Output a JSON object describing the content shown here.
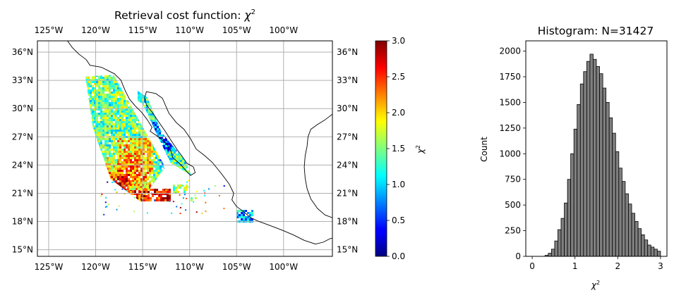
{
  "chart_data": [
    {
      "type": "map",
      "title_text": "Retrieval cost function: ",
      "title_symbol": "χ",
      "title_exp": "2",
      "lon_ticks": [
        -125,
        -120,
        -115,
        -110,
        -105,
        -100
      ],
      "lon_tick_labels": [
        "125°W",
        "120°W",
        "115°W",
        "110°W",
        "105°W",
        "100°W"
      ],
      "lat_ticks": [
        15,
        18,
        21,
        24,
        27,
        30,
        33,
        36
      ],
      "lat_tick_labels": [
        "15°N",
        "18°N",
        "21°N",
        "24°N",
        "27°N",
        "30°N",
        "33°N",
        "36°N"
      ],
      "lon_range": [
        -126.2,
        -94.8
      ],
      "lat_range": [
        14.3,
        37.2
      ],
      "grid": true,
      "colorbar": {
        "label_symbol": "χ",
        "label_exp": "2",
        "colormap": "jet",
        "range": [
          0,
          3.0
        ],
        "ticks": [
          0,
          0.5,
          1.0,
          1.5,
          2.0,
          2.5,
          3.0
        ],
        "tick_labels": [
          "0.0",
          "0.5",
          "1.0",
          "1.5",
          "2.0",
          "2.5",
          "3.0"
        ]
      },
      "data_band_corners": [
        [
          -121.1,
          33.4
        ],
        [
          -118.1,
          33.6
        ],
        [
          -112.6,
          23.8
        ],
        [
          -115.2,
          20.1
        ],
        [
          -118.4,
          22.5
        ],
        [
          -120.3,
          28.0
        ]
      ],
      "baja_gulf_strip": [
        [
          -117.2,
          31.8
        ],
        [
          -116.9,
          32.8
        ],
        [
          -114.5,
          31.2
        ],
        [
          -113.0,
          27.5
        ],
        [
          -110.5,
          24.5
        ],
        [
          -109.8,
          22.9
        ],
        [
          -112.0,
          24.2
        ],
        [
          -113.6,
          27.5
        ],
        [
          -115.0,
          30.5
        ]
      ],
      "coast_polylines": [
        [
          [
            -123.0,
            37.2
          ],
          [
            -122.5,
            36.5
          ],
          [
            -121.8,
            35.8
          ],
          [
            -121.0,
            35.2
          ],
          [
            -120.6,
            34.6
          ],
          [
            -119.4,
            34.4
          ],
          [
            -118.6,
            34.0
          ],
          [
            -118.0,
            33.7
          ],
          [
            -117.3,
            33.0
          ],
          [
            -117.1,
            32.5
          ],
          [
            -116.8,
            31.8
          ],
          [
            -116.4,
            31.0
          ],
          [
            -115.8,
            30.3
          ],
          [
            -115.1,
            29.6
          ],
          [
            -114.5,
            28.8
          ],
          [
            -114.0,
            28.0
          ],
          [
            -114.2,
            27.6
          ],
          [
            -113.2,
            26.9
          ],
          [
            -112.4,
            26.2
          ],
          [
            -112.0,
            25.5
          ],
          [
            -111.8,
            24.8
          ],
          [
            -110.9,
            24.0
          ],
          [
            -110.3,
            23.3
          ],
          [
            -109.9,
            22.9
          ],
          [
            -109.4,
            23.2
          ],
          [
            -109.6,
            23.8
          ],
          [
            -110.3,
            24.2
          ],
          [
            -110.7,
            24.8
          ],
          [
            -111.3,
            25.6
          ],
          [
            -111.9,
            26.5
          ],
          [
            -112.6,
            27.6
          ],
          [
            -113.3,
            28.6
          ],
          [
            -113.9,
            29.5
          ],
          [
            -114.6,
            30.4
          ],
          [
            -114.8,
            31.1
          ],
          [
            -114.6,
            31.8
          ],
          [
            -113.6,
            31.6
          ],
          [
            -112.9,
            31.1
          ],
          [
            -112.2,
            29.5
          ],
          [
            -111.4,
            28.5
          ],
          [
            -110.6,
            27.8
          ],
          [
            -109.9,
            26.8
          ],
          [
            -109.3,
            25.7
          ],
          [
            -108.4,
            25.0
          ],
          [
            -107.6,
            24.3
          ],
          [
            -106.7,
            23.2
          ],
          [
            -105.8,
            22.0
          ],
          [
            -105.3,
            21.0
          ],
          [
            -105.5,
            20.3
          ],
          [
            -105.0,
            19.6
          ],
          [
            -104.2,
            19.0
          ],
          [
            -103.5,
            18.4
          ],
          [
            -102.6,
            18.0
          ],
          [
            -101.5,
            17.6
          ],
          [
            -100.2,
            17.1
          ],
          [
            -99.0,
            16.6
          ],
          [
            -97.8,
            16.0
          ],
          [
            -96.6,
            15.6
          ],
          [
            -95.8,
            15.8
          ],
          [
            -95.0,
            16.2
          ],
          [
            -94.8,
            16.2
          ]
        ],
        [
          [
            -94.8,
            29.4
          ],
          [
            -95.6,
            28.8
          ],
          [
            -96.4,
            28.3
          ],
          [
            -97.1,
            27.8
          ],
          [
            -97.4,
            27.0
          ],
          [
            -97.5,
            26.0
          ],
          [
            -97.7,
            25.0
          ],
          [
            -97.8,
            23.8
          ],
          [
            -97.7,
            22.6
          ],
          [
            -97.5,
            21.5
          ],
          [
            -97.1,
            20.4
          ],
          [
            -96.4,
            19.4
          ],
          [
            -95.6,
            18.7
          ],
          [
            -94.8,
            18.4
          ]
        ]
      ]
    },
    {
      "type": "bar",
      "title": "Histogram: N=31427",
      "ylabel": "Count",
      "xlabel_symbol": "χ",
      "xlabel_exp": "2",
      "xlim": [
        -0.15,
        3.15
      ],
      "ylim": [
        0,
        2100
      ],
      "x_ticks": [
        0,
        1,
        2,
        3
      ],
      "y_ticks": [
        0,
        250,
        500,
        750,
        1000,
        1250,
        1500,
        1750,
        2000
      ],
      "bin_width": 0.075,
      "bin_left_edges": [
        0.3,
        0.375,
        0.45,
        0.525,
        0.6,
        0.675,
        0.75,
        0.825,
        0.9,
        0.975,
        1.05,
        1.125,
        1.2,
        1.275,
        1.35,
        1.425,
        1.5,
        1.575,
        1.65,
        1.725,
        1.8,
        1.875,
        1.95,
        2.025,
        2.1,
        2.175,
        2.25,
        2.325,
        2.4,
        2.475,
        2.55,
        2.625,
        2.7,
        2.775,
        2.85,
        2.925
      ],
      "values": [
        10,
        30,
        70,
        150,
        260,
        370,
        520,
        750,
        1000,
        1240,
        1480,
        1680,
        1800,
        1900,
        1970,
        1920,
        1850,
        1780,
        1640,
        1500,
        1350,
        1200,
        1020,
        860,
        730,
        610,
        510,
        420,
        340,
        270,
        210,
        160,
        110,
        90,
        70,
        50
      ],
      "bar_color": "#7f7f7f",
      "edge_color": "#000000"
    }
  ]
}
